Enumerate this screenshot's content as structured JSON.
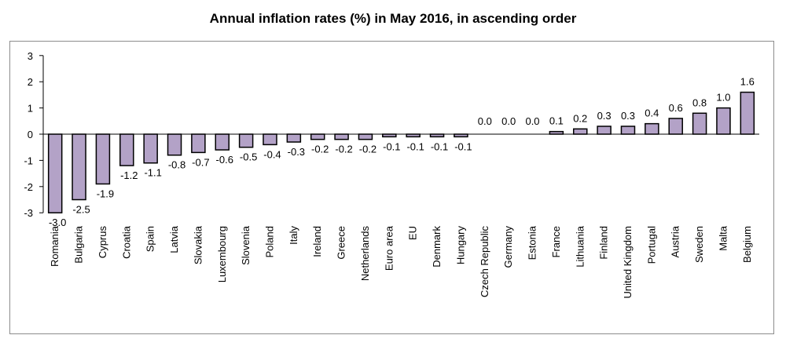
{
  "chart_data": {
    "type": "bar",
    "title": "Annual inflation rates (%) in May 2016, in ascending order",
    "xlabel": "",
    "ylabel": "",
    "ylim": [
      -3,
      3
    ],
    "yticks": [
      3,
      2,
      1,
      0,
      -1,
      -2,
      -3
    ],
    "grid": false,
    "legend": "none",
    "categories": [
      "Romania",
      "Bulgaria",
      "Cyprus",
      "Croatia",
      "Spain",
      "Latvia",
      "Slovakia",
      "Luxembourg",
      "Slovenia",
      "Poland",
      "Italy",
      "Ireland",
      "Greece",
      "Netherlands",
      "Euro area",
      "EU",
      "Denmark",
      "Hungary",
      "Czech Republic",
      "Germany",
      "Estonia",
      "France",
      "Lithuania",
      "Finland",
      "United Kingdom",
      "Portugal",
      "Austria",
      "Sweden",
      "Malta",
      "Belgium"
    ],
    "values": [
      -3.0,
      -2.5,
      -1.9,
      -1.2,
      -1.1,
      -0.8,
      -0.7,
      -0.6,
      -0.5,
      -0.4,
      -0.3,
      -0.2,
      -0.2,
      -0.2,
      -0.1,
      -0.1,
      -0.1,
      -0.1,
      0.0,
      0.0,
      0.0,
      0.1,
      0.2,
      0.3,
      0.3,
      0.4,
      0.6,
      0.8,
      1.0,
      1.6
    ],
    "value_labels": [
      "-3.0",
      "-2.5",
      "-1.9",
      "-1.2",
      "-1.1",
      "-0.8",
      "-0.7",
      "-0.6",
      "-0.5",
      "-0.4",
      "-0.3",
      "-0.2",
      "-0.2",
      "-0.2",
      "-0.1",
      "-0.1",
      "-0.1",
      "-0.1",
      "0.0",
      "0.0",
      "0.0",
      "0.1",
      "0.2",
      "0.3",
      "0.3",
      "0.4",
      "0.6",
      "0.8",
      "1.0",
      "1.6"
    ],
    "colors": {
      "bar_fill": "#b3a2c7",
      "bar_stroke": "#000000",
      "axis": "#000000",
      "frame": "#8c8c8c"
    }
  }
}
